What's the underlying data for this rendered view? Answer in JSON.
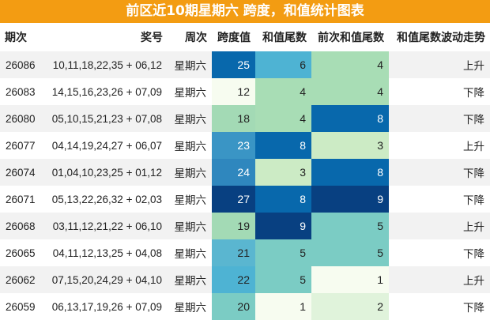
{
  "title": "前区近10期星期六 跨度，和值统计图表",
  "headers": {
    "period": "期次",
    "numbers": "奖号",
    "weekday": "周次",
    "span": "跨度值",
    "sum_tail": "和值尾数",
    "prev_sum_tail": "前次和值尾数",
    "trend": "和值尾数波动走势"
  },
  "rows": [
    {
      "period": "26086",
      "numbers": "10,11,18,22,35 + 06,12",
      "weekday": "星期六",
      "span": "25",
      "sum_tail": "6",
      "prev_sum_tail": "4",
      "trend": "上升"
    },
    {
      "period": "26083",
      "numbers": "14,15,16,23,26 + 07,09",
      "weekday": "星期六",
      "span": "12",
      "sum_tail": "4",
      "prev_sum_tail": "4",
      "trend": "下降"
    },
    {
      "period": "26080",
      "numbers": "05,10,15,21,23 + 07,08",
      "weekday": "星期六",
      "span": "18",
      "sum_tail": "4",
      "prev_sum_tail": "8",
      "trend": "下降"
    },
    {
      "period": "26077",
      "numbers": "04,14,19,24,27 + 06,07",
      "weekday": "星期六",
      "span": "23",
      "sum_tail": "8",
      "prev_sum_tail": "3",
      "trend": "上升"
    },
    {
      "period": "26074",
      "numbers": "01,04,10,23,25 + 01,12",
      "weekday": "星期六",
      "span": "24",
      "sum_tail": "3",
      "prev_sum_tail": "8",
      "trend": "下降"
    },
    {
      "period": "26071",
      "numbers": "05,13,22,26,32 + 02,03",
      "weekday": "星期六",
      "span": "27",
      "sum_tail": "8",
      "prev_sum_tail": "9",
      "trend": "下降"
    },
    {
      "period": "26068",
      "numbers": "03,11,12,21,22 + 06,10",
      "weekday": "星期六",
      "span": "19",
      "sum_tail": "9",
      "prev_sum_tail": "5",
      "trend": "上升"
    },
    {
      "period": "26065",
      "numbers": "04,11,12,13,25 + 04,08",
      "weekday": "星期六",
      "span": "21",
      "sum_tail": "5",
      "prev_sum_tail": "5",
      "trend": "下降"
    },
    {
      "period": "26062",
      "numbers": "07,15,20,24,29 + 04,10",
      "weekday": "星期六",
      "span": "22",
      "sum_tail": "5",
      "prev_sum_tail": "1",
      "trend": "上升"
    },
    {
      "period": "26059",
      "numbers": "06,13,17,19,26 + 07,09",
      "weekday": "星期六",
      "span": "20",
      "sum_tail": "1",
      "prev_sum_tail": "2",
      "trend": "下降"
    }
  ],
  "colors": {
    "title_bg": "#f39c12",
    "span": [
      "#0868ac",
      "#f7fcf0",
      "#a3dab5",
      "#3a95c5",
      "#2f87be",
      "#084081",
      "#a3dab5",
      "#5ab6d0",
      "#4eb3d3",
      "#7bccc4"
    ],
    "sum_tail": [
      "#4eb3d3",
      "#a8ddb5",
      "#a8ddb5",
      "#0868ac",
      "#ccebc5",
      "#0868ac",
      "#084081",
      "#7bccc4",
      "#7bccc4",
      "#f7fcf0"
    ],
    "prev_sum_tail": [
      "#a8ddb5",
      "#a8ddb5",
      "#0868ac",
      "#ccebc5",
      "#0868ac",
      "#084081",
      "#7bccc4",
      "#7bccc4",
      "#f7fcf0",
      "#e0f3db"
    ]
  }
}
